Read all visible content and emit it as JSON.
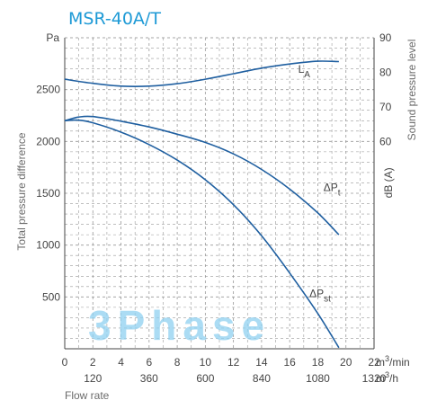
{
  "chart_data": {
    "type": "line",
    "title": "MSR-40A/T",
    "watermark": "3Phase",
    "xlabel": "Flow rate",
    "ylabel_left": "Total pressure difference",
    "ylabel_right_top": "Sound pressure level",
    "ylabel_right_bottom": "dB (A)",
    "y_unit": "Pa",
    "x_unit_primary": "m³/min",
    "x_unit_secondary": "m³/h",
    "xlim": [
      0,
      22
    ],
    "ylim": [
      0,
      3000
    ],
    "ylim_right": [
      0,
      90
    ],
    "grid": true,
    "x_ticks_primary": [
      0,
      2,
      4,
      6,
      8,
      10,
      12,
      14,
      16,
      18,
      20,
      22
    ],
    "x_ticks_secondary": [
      {
        "x": 2,
        "label": "120"
      },
      {
        "x": 6,
        "label": "360"
      },
      {
        "x": 10,
        "label": "600"
      },
      {
        "x": 14,
        "label": "840"
      },
      {
        "x": 18,
        "label": "1080"
      },
      {
        "x": 22,
        "label": "1320"
      }
    ],
    "y_ticks_left": [
      500,
      1000,
      1500,
      2000,
      2500
    ],
    "y_ticks_right": [
      60,
      70,
      80,
      90
    ],
    "series": [
      {
        "name": "L_A",
        "label_main": "L",
        "label_sub": "A",
        "axis": "right",
        "color": "#1f5fa0",
        "points": [
          [
            0,
            78
          ],
          [
            2,
            76.8
          ],
          [
            4,
            76
          ],
          [
            6,
            76
          ],
          [
            8,
            76.7
          ],
          [
            10,
            78
          ],
          [
            12,
            79.6
          ],
          [
            14,
            81.2
          ],
          [
            16,
            82.4
          ],
          [
            18,
            83.2
          ],
          [
            19.5,
            83.1
          ]
        ],
        "label_at": [
          16.6,
          79.8
        ]
      },
      {
        "name": "ΔPt",
        "label_main": "ΔP",
        "label_sub": "t",
        "axis": "left",
        "color": "#1f5fa0",
        "points": [
          [
            0,
            2200
          ],
          [
            1,
            2235
          ],
          [
            2,
            2240
          ],
          [
            4,
            2195
          ],
          [
            6,
            2140
          ],
          [
            8,
            2070
          ],
          [
            10,
            1990
          ],
          [
            12,
            1880
          ],
          [
            14,
            1730
          ],
          [
            16,
            1540
          ],
          [
            18,
            1310
          ],
          [
            19.5,
            1100
          ]
        ],
        "label_at": [
          18.4,
          1520
        ]
      },
      {
        "name": "ΔPst",
        "label_main": "ΔP",
        "label_sub": "st",
        "axis": "left",
        "color": "#1f5fa0",
        "points": [
          [
            0,
            2200
          ],
          [
            1,
            2205
          ],
          [
            2,
            2180
          ],
          [
            4,
            2090
          ],
          [
            6,
            1970
          ],
          [
            8,
            1820
          ],
          [
            10,
            1630
          ],
          [
            12,
            1390
          ],
          [
            14,
            1090
          ],
          [
            16,
            730
          ],
          [
            18,
            340
          ],
          [
            19.5,
            10
          ]
        ],
        "label_at": [
          17.4,
          500
        ]
      }
    ]
  },
  "colors": {
    "title": "#1e9ad6",
    "axis": "#444444",
    "grid": "#999999",
    "curve": "#1f5fa0",
    "watermark": "#8fd0f0",
    "text": "#444444",
    "label_gray": "#6b6b6b"
  }
}
